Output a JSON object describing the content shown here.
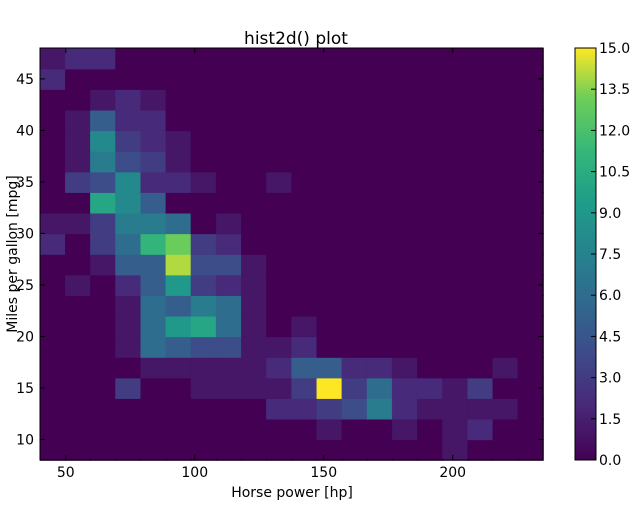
{
  "chart_data": {
    "type": "heatmap",
    "title": "hist2d() plot",
    "xlabel": "Horse power [hp]",
    "ylabel": "Miles per gallon [mpg]",
    "xlim": [
      40,
      235
    ],
    "ylim": [
      8,
      48
    ],
    "x_ticks": [
      50,
      100,
      150,
      200
    ],
    "y_ticks": [
      10,
      15,
      20,
      25,
      30,
      35,
      40,
      45
    ],
    "x_bin_start": 40,
    "x_bin_width": 9.75,
    "y_bin_start": 8,
    "y_bin_width": 2,
    "colormap": "viridis",
    "colorbar": {
      "min": 0,
      "max": 15,
      "ticks": [
        0.0,
        1.5,
        3.0,
        4.5,
        6.0,
        7.5,
        9.0,
        10.5,
        12.0,
        13.5,
        15.0
      ],
      "tick_labels": [
        "0.0",
        "1.5",
        "3.0",
        "4.5",
        "6.0",
        "7.5",
        "9.0",
        "10.5",
        "12.0",
        "13.5",
        "15.0"
      ]
    },
    "counts_rows_from_bottom": [
      [
        0,
        0,
        0,
        0,
        0,
        0,
        0,
        0,
        0,
        0,
        0,
        0,
        0,
        0,
        0,
        0,
        1,
        0,
        0,
        0
      ],
      [
        0,
        0,
        0,
        0,
        0,
        0,
        0,
        0,
        0,
        0,
        0,
        1,
        0,
        0,
        1,
        0,
        1,
        2,
        0,
        0
      ],
      [
        0,
        0,
        0,
        0,
        0,
        0,
        0,
        0,
        0,
        2,
        2,
        3,
        4,
        7,
        2,
        1,
        1,
        1,
        1,
        0
      ],
      [
        0,
        0,
        0,
        3,
        0,
        0,
        1,
        1,
        1,
        1,
        3,
        15,
        3,
        6,
        2,
        2,
        1,
        3,
        0,
        0
      ],
      [
        0,
        0,
        0,
        0,
        1,
        1,
        1,
        1,
        1,
        2,
        5,
        5,
        2,
        2,
        1,
        0,
        0,
        0,
        1,
        0
      ],
      [
        0,
        0,
        0,
        1,
        6,
        5,
        4,
        4,
        1,
        1,
        2,
        0,
        0,
        0,
        0,
        0,
        0,
        0,
        0,
        0
      ],
      [
        0,
        0,
        0,
        1,
        6,
        9,
        10,
        6,
        1,
        0,
        1,
        0,
        0,
        0,
        0,
        0,
        0,
        0,
        0,
        0
      ],
      [
        0,
        0,
        0,
        1,
        6,
        5,
        7,
        6,
        1,
        0,
        0,
        0,
        0,
        0,
        0,
        0,
        0,
        0,
        0,
        0
      ],
      [
        0,
        1,
        0,
        2,
        5,
        9,
        3,
        2,
        1,
        0,
        0,
        0,
        0,
        0,
        0,
        0,
        0,
        0,
        0,
        0
      ],
      [
        0,
        0,
        1,
        5,
        5,
        14,
        4,
        4,
        1,
        0,
        0,
        0,
        0,
        0,
        0,
        0,
        0,
        0,
        0,
        0
      ],
      [
        2,
        0,
        3,
        6,
        11,
        13,
        3,
        2,
        0,
        0,
        0,
        0,
        0,
        0,
        0,
        0,
        0,
        0,
        0,
        0
      ],
      [
        1,
        1,
        3,
        7,
        7,
        6,
        0,
        1,
        0,
        0,
        0,
        0,
        0,
        0,
        0,
        0,
        0,
        0,
        0,
        0
      ],
      [
        0,
        0,
        10,
        8,
        5,
        0,
        0,
        0,
        0,
        0,
        0,
        0,
        0,
        0,
        0,
        0,
        0,
        0,
        0,
        0
      ],
      [
        0,
        3,
        4,
        8,
        2,
        2,
        1,
        0,
        0,
        1,
        0,
        0,
        0,
        0,
        0,
        0,
        0,
        0,
        0,
        0
      ],
      [
        0,
        1,
        7,
        4,
        3,
        1,
        0,
        0,
        0,
        0,
        0,
        0,
        0,
        0,
        0,
        0,
        0,
        0,
        0,
        0
      ],
      [
        0,
        1,
        8,
        3,
        2,
        1,
        0,
        0,
        0,
        0,
        0,
        0,
        0,
        0,
        0,
        0,
        0,
        0,
        0,
        0
      ],
      [
        0,
        1,
        5,
        2,
        2,
        0,
        0,
        0,
        0,
        0,
        0,
        0,
        0,
        0,
        0,
        0,
        0,
        0,
        0,
        0
      ],
      [
        0,
        0,
        1,
        2,
        1,
        0,
        0,
        0,
        0,
        0,
        0,
        0,
        0,
        0,
        0,
        0,
        0,
        0,
        0,
        0
      ],
      [
        2,
        0,
        0,
        0,
        0,
        0,
        0,
        0,
        0,
        0,
        0,
        0,
        0,
        0,
        0,
        0,
        0,
        0,
        0,
        0
      ],
      [
        1,
        2,
        2,
        0,
        0,
        0,
        0,
        0,
        0,
        0,
        0,
        0,
        0,
        0,
        0,
        0,
        0,
        0,
        0,
        0
      ]
    ]
  }
}
